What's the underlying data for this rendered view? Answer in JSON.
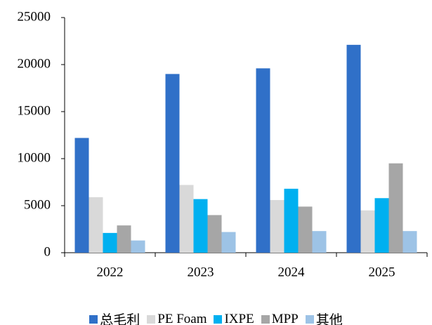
{
  "chart_data": {
    "type": "bar",
    "categories": [
      "2022",
      "2023",
      "2024",
      "2025"
    ],
    "series": [
      {
        "name": "总毛利",
        "color": "#3070c8",
        "values": [
          12200,
          19000,
          19600,
          22100
        ]
      },
      {
        "name": "PE Foam",
        "color": "#d9d9d9",
        "values": [
          5900,
          7200,
          5600,
          4500
        ]
      },
      {
        "name": "IXPE",
        "color": "#00b0f0",
        "values": [
          2100,
          5700,
          6800,
          5800
        ]
      },
      {
        "name": "MPP",
        "color": "#a6a6a6",
        "values": [
          2900,
          4000,
          4900,
          9500
        ]
      },
      {
        "name": "其他",
        "color": "#9dc3e6",
        "values": [
          1300,
          2200,
          2300,
          2300
        ]
      }
    ],
    "ylim": [
      0,
      25000
    ],
    "yticks": [
      0,
      5000,
      10000,
      15000,
      20000,
      25000
    ],
    "grid": false,
    "legend": "bottom"
  }
}
